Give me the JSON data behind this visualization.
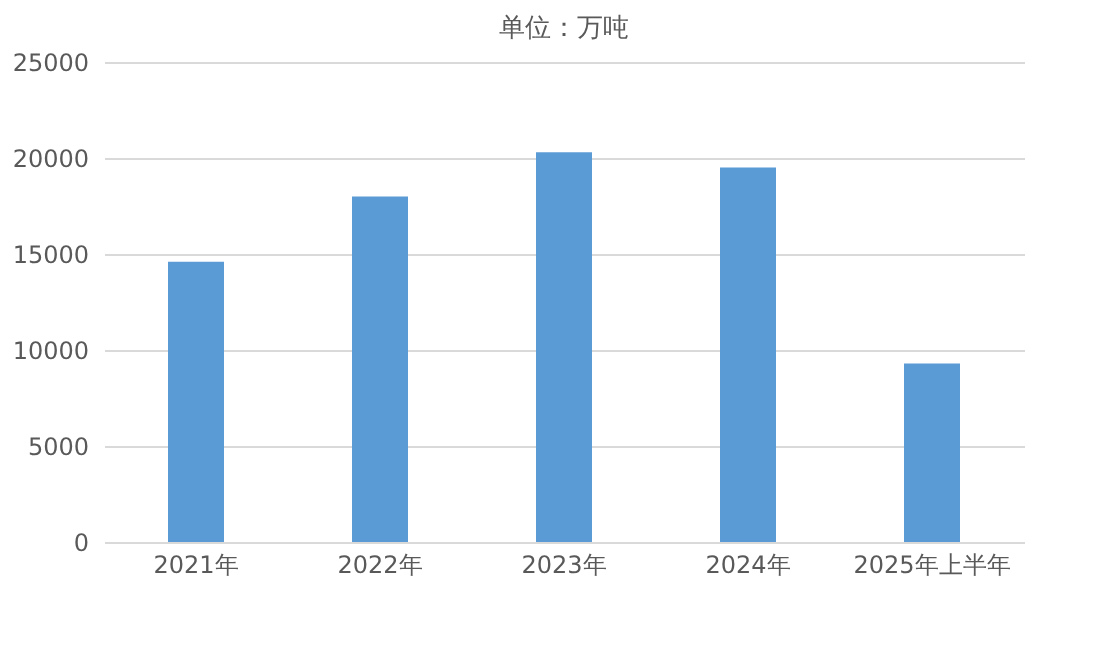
{
  "chart_data": {
    "type": "bar",
    "title": "单位：万吨",
    "categories": [
      "2021年",
      "2022年",
      "2023年",
      "2024年",
      "2025年上半年"
    ],
    "values": [
      14600,
      18000,
      20300,
      19500,
      9300
    ],
    "color": "#5b9bd5",
    "ylim": [
      0,
      25000
    ],
    "yticks": [
      0,
      5000,
      10000,
      15000,
      20000,
      25000
    ],
    "grid": "y"
  }
}
